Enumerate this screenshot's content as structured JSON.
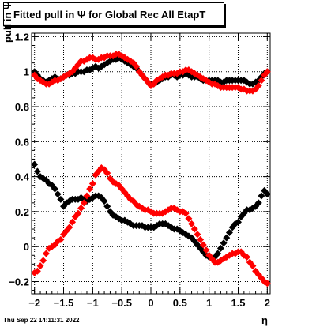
{
  "page": {
    "title": "Fitted pull in  Ψ   for Global Rec All EtapT",
    "timestamp": "Thu Sep 22 14:11:31 2022"
  },
  "chart_data": {
    "type": "scatter",
    "title": "Fitted pull in  Ψ   for Global Rec All EtapT",
    "xlabel": "η",
    "ylabel": "pull in  Ψ",
    "xlim": [
      -2.05,
      2.05
    ],
    "ylim": [
      -0.27,
      1.22
    ],
    "xticks": [
      -2,
      -1.5,
      -1,
      -0.5,
      0,
      0.5,
      1,
      1.5,
      2
    ],
    "xtick_labels": [
      "−2",
      "−1.5",
      "−1",
      "−0.5",
      "0",
      "0.5",
      "1",
      "1.5",
      "2"
    ],
    "yticks": [
      -0.2,
      0,
      0.2,
      0.4,
      0.6,
      0.8,
      1,
      1.2
    ],
    "ytick_labels": [
      "−0.2",
      "0",
      "0.2",
      "0.4",
      "0.6",
      "0.8",
      "1",
      "1.2"
    ],
    "grid": true,
    "colors": {
      "black": "#000000",
      "red": "#ff0000"
    },
    "series": [
      {
        "color": "#000000",
        "x": [
          -2.0,
          -1.95,
          -1.9,
          -1.85,
          -1.8,
          -1.75,
          -1.7,
          -1.65,
          -1.6,
          -1.55,
          -1.5,
          -1.45,
          -1.4,
          -1.35,
          -1.3,
          -1.25,
          -1.2,
          -1.15,
          -1.1,
          -1.05,
          -1.0,
          -0.95,
          -0.9,
          -0.85,
          -0.8,
          -0.75,
          -0.7,
          -0.65,
          -0.6,
          -0.55,
          -0.5,
          -0.45,
          -0.4,
          -0.35,
          -0.3,
          -0.25,
          -0.2,
          -0.15,
          -0.1,
          -0.05,
          0.0,
          0.05,
          0.1,
          0.15,
          0.2,
          0.25,
          0.3,
          0.35,
          0.4,
          0.45,
          0.5,
          0.55,
          0.6,
          0.65,
          0.7,
          0.75,
          0.8,
          0.85,
          0.9,
          0.95,
          1.0,
          1.05,
          1.1,
          1.15,
          1.2,
          1.25,
          1.3,
          1.35,
          1.4,
          1.45,
          1.5,
          1.55,
          1.6,
          1.65,
          1.7,
          1.75,
          1.8,
          1.85,
          1.9,
          1.95,
          2.0
        ],
        "y": [
          1.0,
          0.98,
          0.96,
          0.95,
          0.94,
          0.95,
          0.96,
          0.97,
          0.96,
          0.96,
          0.97,
          0.98,
          0.98,
          0.99,
          0.99,
          1.0,
          1.0,
          1.0,
          1.01,
          1.01,
          1.02,
          1.03,
          1.02,
          1.03,
          1.04,
          1.05,
          1.06,
          1.07,
          1.07,
          1.08,
          1.07,
          1.06,
          1.05,
          1.04,
          1.03,
          1.02,
          1.0,
          0.98,
          0.96,
          0.94,
          0.93,
          0.93,
          0.94,
          0.95,
          0.96,
          0.97,
          0.97,
          0.98,
          0.98,
          0.97,
          0.98,
          0.98,
          0.99,
          0.98,
          0.97,
          0.97,
          0.97,
          0.96,
          0.95,
          0.95,
          0.95,
          0.95,
          0.95,
          0.95,
          0.94,
          0.94,
          0.95,
          0.95,
          0.95,
          0.95,
          0.95,
          0.95,
          0.95,
          0.94,
          0.93,
          0.93,
          0.94,
          0.95,
          0.97,
          0.99,
          1.0
        ],
        "y_low": [
          0.47,
          0.43,
          0.4,
          0.39,
          0.38,
          0.36,
          0.35,
          0.33,
          0.3,
          0.27,
          0.23,
          0.25,
          0.26,
          0.27,
          0.27,
          0.27,
          0.28,
          0.27,
          0.26,
          0.27,
          0.28,
          0.29,
          0.29,
          0.28,
          0.26,
          0.23,
          0.2,
          0.18,
          0.17,
          0.16,
          0.15,
          0.15,
          0.14,
          0.13,
          0.12,
          0.12,
          0.12,
          0.12,
          0.11,
          0.11,
          0.11,
          0.11,
          0.12,
          0.13,
          0.13,
          0.13,
          0.12,
          0.11,
          0.1,
          0.1,
          0.09,
          0.08,
          0.07,
          0.06,
          0.05,
          0.03,
          0.01,
          -0.01,
          -0.03,
          -0.05,
          -0.06,
          -0.07,
          -0.06,
          -0.04,
          -0.01,
          0.02,
          0.05,
          0.08,
          0.11,
          0.13,
          0.14,
          0.17,
          0.19,
          0.21,
          0.21,
          0.22,
          0.23,
          0.25,
          0.29,
          0.32,
          0.3
        ]
      },
      {
        "color": "#ff0000",
        "x": [
          -2.0,
          -1.95,
          -1.9,
          -1.85,
          -1.8,
          -1.75,
          -1.7,
          -1.65,
          -1.6,
          -1.55,
          -1.5,
          -1.45,
          -1.4,
          -1.35,
          -1.3,
          -1.25,
          -1.2,
          -1.15,
          -1.1,
          -1.05,
          -1.0,
          -0.95,
          -0.9,
          -0.85,
          -0.8,
          -0.75,
          -0.7,
          -0.65,
          -0.6,
          -0.55,
          -0.5,
          -0.45,
          -0.4,
          -0.35,
          -0.3,
          -0.25,
          -0.2,
          -0.15,
          -0.1,
          -0.05,
          0.0,
          0.05,
          0.1,
          0.15,
          0.2,
          0.25,
          0.3,
          0.35,
          0.4,
          0.45,
          0.5,
          0.55,
          0.6,
          0.65,
          0.7,
          0.75,
          0.8,
          0.85,
          0.9,
          0.95,
          1.0,
          1.05,
          1.1,
          1.15,
          1.2,
          1.25,
          1.3,
          1.35,
          1.4,
          1.45,
          1.5,
          1.55,
          1.6,
          1.65,
          1.7,
          1.75,
          1.8,
          1.85,
          1.9,
          1.95,
          2.0
        ],
        "y": [
          0.98,
          0.96,
          0.95,
          0.94,
          0.93,
          0.93,
          0.94,
          0.95,
          0.95,
          0.96,
          0.97,
          0.98,
          0.99,
          1.0,
          1.02,
          1.04,
          1.06,
          1.06,
          1.07,
          1.08,
          1.08,
          1.07,
          1.07,
          1.08,
          1.08,
          1.09,
          1.09,
          1.09,
          1.1,
          1.1,
          1.09,
          1.08,
          1.07,
          1.06,
          1.05,
          1.03,
          1.0,
          0.98,
          0.96,
          0.94,
          0.92,
          0.93,
          0.95,
          0.96,
          0.97,
          0.98,
          0.98,
          0.99,
          0.99,
          0.99,
          1.0,
          1.0,
          1.01,
          1.01,
          1.0,
          0.99,
          0.98,
          0.97,
          0.96,
          0.95,
          0.94,
          0.93,
          0.93,
          0.92,
          0.91,
          0.91,
          0.91,
          0.91,
          0.91,
          0.91,
          0.91,
          0.9,
          0.9,
          0.89,
          0.89,
          0.89,
          0.9,
          0.92,
          0.95,
          0.98,
          1.0
        ],
        "y_low": [
          -0.15,
          -0.14,
          -0.11,
          -0.08,
          -0.04,
          -0.01,
          0.0,
          0.01,
          0.03,
          0.04,
          0.07,
          0.09,
          0.11,
          0.14,
          0.17,
          0.19,
          0.22,
          0.25,
          0.29,
          0.33,
          0.36,
          0.41,
          0.43,
          0.45,
          0.44,
          0.42,
          0.39,
          0.37,
          0.36,
          0.35,
          0.33,
          0.31,
          0.29,
          0.27,
          0.26,
          0.24,
          0.23,
          0.22,
          0.21,
          0.21,
          0.2,
          0.19,
          0.19,
          0.19,
          0.19,
          0.2,
          0.21,
          0.22,
          0.22,
          0.21,
          0.2,
          0.2,
          0.19,
          0.16,
          0.13,
          0.1,
          0.07,
          0.04,
          0.01,
          -0.02,
          -0.05,
          -0.07,
          -0.09,
          -0.09,
          -0.08,
          -0.07,
          -0.06,
          -0.05,
          -0.04,
          -0.04,
          -0.03,
          -0.03,
          -0.05,
          -0.06,
          -0.09,
          -0.11,
          -0.14,
          -0.16,
          -0.18,
          -0.2,
          -0.21
        ]
      }
    ]
  }
}
